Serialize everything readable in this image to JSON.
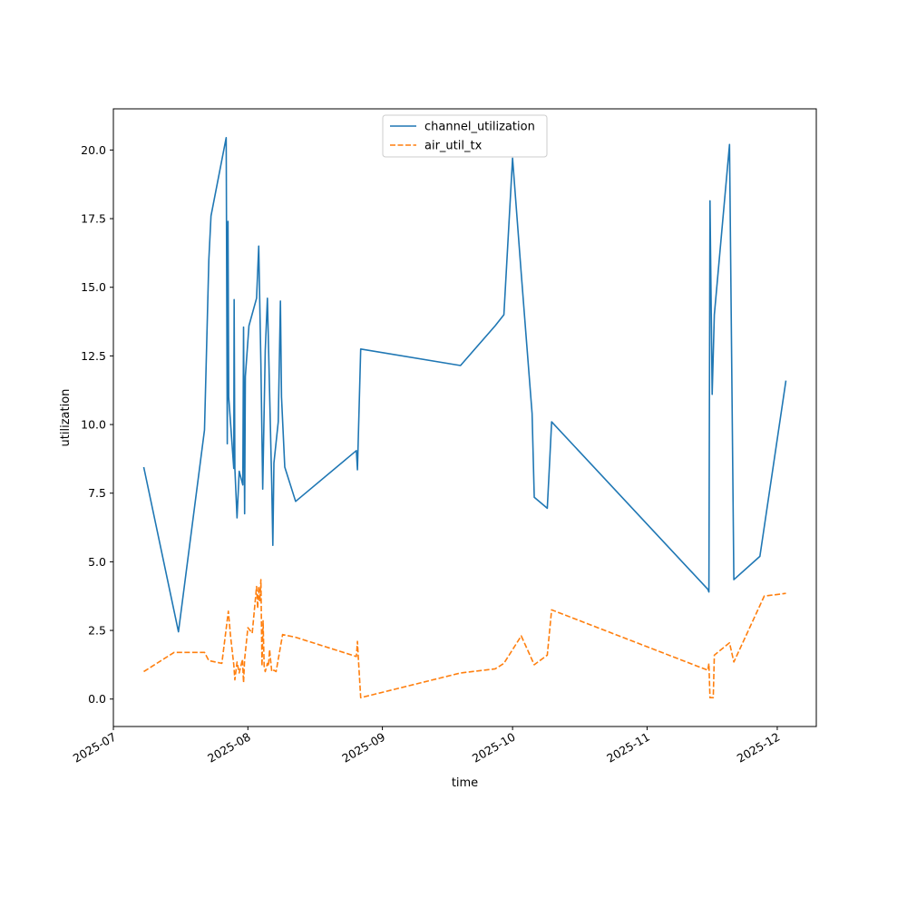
{
  "chart_data": {
    "type": "line",
    "title": "",
    "xlabel": "time",
    "ylabel": "utilization",
    "x_axis_type": "date",
    "xlim": [
      "2025-07-01",
      "2025-12-10"
    ],
    "ylim": [
      -1.0,
      21.5
    ],
    "x_tick_labels": [
      "2025-07",
      "2025-08",
      "2025-09",
      "2025-10",
      "2025-11",
      "2025-12"
    ],
    "x_ticks": [
      "2025-07-01",
      "2025-08-01",
      "2025-09-01",
      "2025-10-01",
      "2025-11-01",
      "2025-12-01"
    ],
    "y_ticks": [
      0.0,
      2.5,
      5.0,
      7.5,
      10.0,
      12.5,
      15.0,
      17.5,
      20.0
    ],
    "y_tick_labels": [
      "0.0",
      "2.5",
      "5.0",
      "7.5",
      "10.0",
      "12.5",
      "15.0",
      "17.5",
      "20.0"
    ],
    "legend_position": "upper center",
    "grid": false,
    "series": [
      {
        "name": "channel_utilization",
        "color": "#1f77b4",
        "style": "solid",
        "points": [
          [
            "2025-07-08",
            8.45
          ],
          [
            "2025-07-16",
            2.45
          ],
          [
            "2025-07-22",
            9.8
          ],
          [
            "2025-07-23",
            16.0
          ],
          [
            "2025-07-23T12",
            17.6
          ],
          [
            "2025-07-27",
            20.45
          ],
          [
            "2025-07-27T06",
            9.3
          ],
          [
            "2025-07-27T10",
            17.4
          ],
          [
            "2025-07-27T14",
            11.0
          ],
          [
            "2025-07-28T18",
            8.4
          ],
          [
            "2025-07-28T20",
            14.55
          ],
          [
            "2025-07-29",
            8.4
          ],
          [
            "2025-07-29T12",
            6.6
          ],
          [
            "2025-07-30",
            8.3
          ],
          [
            "2025-07-30T20",
            7.8
          ],
          [
            "2025-07-31",
            13.55
          ],
          [
            "2025-07-31T06",
            6.75
          ],
          [
            "2025-07-31T10",
            11.75
          ],
          [
            "2025-08-01T06",
            13.6
          ],
          [
            "2025-08-03",
            14.6
          ],
          [
            "2025-08-03T12",
            16.5
          ],
          [
            "2025-08-04",
            12.2
          ],
          [
            "2025-08-04T10",
            7.65
          ],
          [
            "2025-08-05",
            12.7
          ],
          [
            "2025-08-05T12",
            14.6
          ],
          [
            "2025-08-06",
            11.2
          ],
          [
            "2025-08-06T12",
            7.8
          ],
          [
            "2025-08-06T18",
            5.6
          ],
          [
            "2025-08-07",
            8.6
          ],
          [
            "2025-08-08",
            10.1
          ],
          [
            "2025-08-08T12",
            14.5
          ],
          [
            "2025-08-08T18",
            11.0
          ],
          [
            "2025-08-09T12",
            8.45
          ],
          [
            "2025-08-12",
            7.2
          ],
          [
            "2025-08-26",
            9.05
          ],
          [
            "2025-08-26T06",
            8.35
          ],
          [
            "2025-08-27",
            12.75
          ],
          [
            "2025-09-19",
            12.15
          ],
          [
            "2025-09-27",
            13.6
          ],
          [
            "2025-09-29",
            14.0
          ],
          [
            "2025-10-01",
            19.7
          ],
          [
            "2025-10-03",
            15.5
          ],
          [
            "2025-10-05T12",
            10.4
          ],
          [
            "2025-10-06",
            7.35
          ],
          [
            "2025-10-09",
            6.95
          ],
          [
            "2025-10-09T12",
            8.5
          ],
          [
            "2025-10-10",
            10.1
          ],
          [
            "2025-11-15",
            4.0
          ],
          [
            "2025-11-15T06",
            3.9
          ],
          [
            "2025-11-15T12",
            18.15
          ],
          [
            "2025-11-16",
            11.1
          ],
          [
            "2025-11-16T12",
            14.0
          ],
          [
            "2025-11-20",
            20.2
          ],
          [
            "2025-11-21",
            4.35
          ],
          [
            "2025-11-27",
            5.2
          ],
          [
            "2025-12-03",
            11.6
          ]
        ]
      },
      {
        "name": "air_util_tx",
        "color": "#ff7f0e",
        "style": "dashed",
        "points": [
          [
            "2025-07-08",
            1.0
          ],
          [
            "2025-07-15",
            1.7
          ],
          [
            "2025-07-22",
            1.7
          ],
          [
            "2025-07-23",
            1.4
          ],
          [
            "2025-07-26",
            1.3
          ],
          [
            "2025-07-27T12",
            3.2
          ],
          [
            "2025-07-28",
            2.3
          ],
          [
            "2025-07-28T18",
            1.25
          ],
          [
            "2025-07-29",
            0.7
          ],
          [
            "2025-07-29T12",
            1.35
          ],
          [
            "2025-07-30",
            0.95
          ],
          [
            "2025-07-30T18",
            1.45
          ],
          [
            "2025-07-31",
            0.6
          ],
          [
            "2025-07-31T06",
            1.45
          ],
          [
            "2025-08-01",
            2.6
          ],
          [
            "2025-08-02",
            2.4
          ],
          [
            "2025-08-03",
            4.1
          ],
          [
            "2025-08-03T06",
            3.3
          ],
          [
            "2025-08-03T12",
            4.1
          ],
          [
            "2025-08-03T18",
            3.55
          ],
          [
            "2025-08-04",
            4.35
          ],
          [
            "2025-08-04T06",
            1.2
          ],
          [
            "2025-08-04T12",
            2.85
          ],
          [
            "2025-08-04T18",
            1.2
          ],
          [
            "2025-08-05",
            1.0
          ],
          [
            "2025-08-05T12",
            1.3
          ],
          [
            "2025-08-05T18",
            1.2
          ],
          [
            "2025-08-06",
            1.8
          ],
          [
            "2025-08-06T12",
            1.0
          ],
          [
            "2025-08-07",
            1.05
          ],
          [
            "2025-08-07T12",
            1.0
          ],
          [
            "2025-08-09",
            2.35
          ],
          [
            "2025-08-12",
            2.25
          ],
          [
            "2025-08-26",
            1.55
          ],
          [
            "2025-08-26T06",
            2.1
          ],
          [
            "2025-08-26T10",
            1.6
          ],
          [
            "2025-08-27",
            0.05
          ],
          [
            "2025-09-19",
            0.95
          ],
          [
            "2025-09-27",
            1.1
          ],
          [
            "2025-09-29",
            1.3
          ],
          [
            "2025-10-03",
            2.3
          ],
          [
            "2025-10-06",
            1.25
          ],
          [
            "2025-10-09",
            1.6
          ],
          [
            "2025-10-10",
            3.25
          ],
          [
            "2025-11-15",
            1.05
          ],
          [
            "2025-11-15T06",
            1.3
          ],
          [
            "2025-11-15T12",
            0.05
          ],
          [
            "2025-11-16T06",
            0.05
          ],
          [
            "2025-11-16T12",
            1.6
          ],
          [
            "2025-11-20",
            2.05
          ],
          [
            "2025-11-21",
            1.35
          ],
          [
            "2025-11-28",
            3.75
          ],
          [
            "2025-12-03",
            3.85
          ]
        ]
      }
    ]
  }
}
